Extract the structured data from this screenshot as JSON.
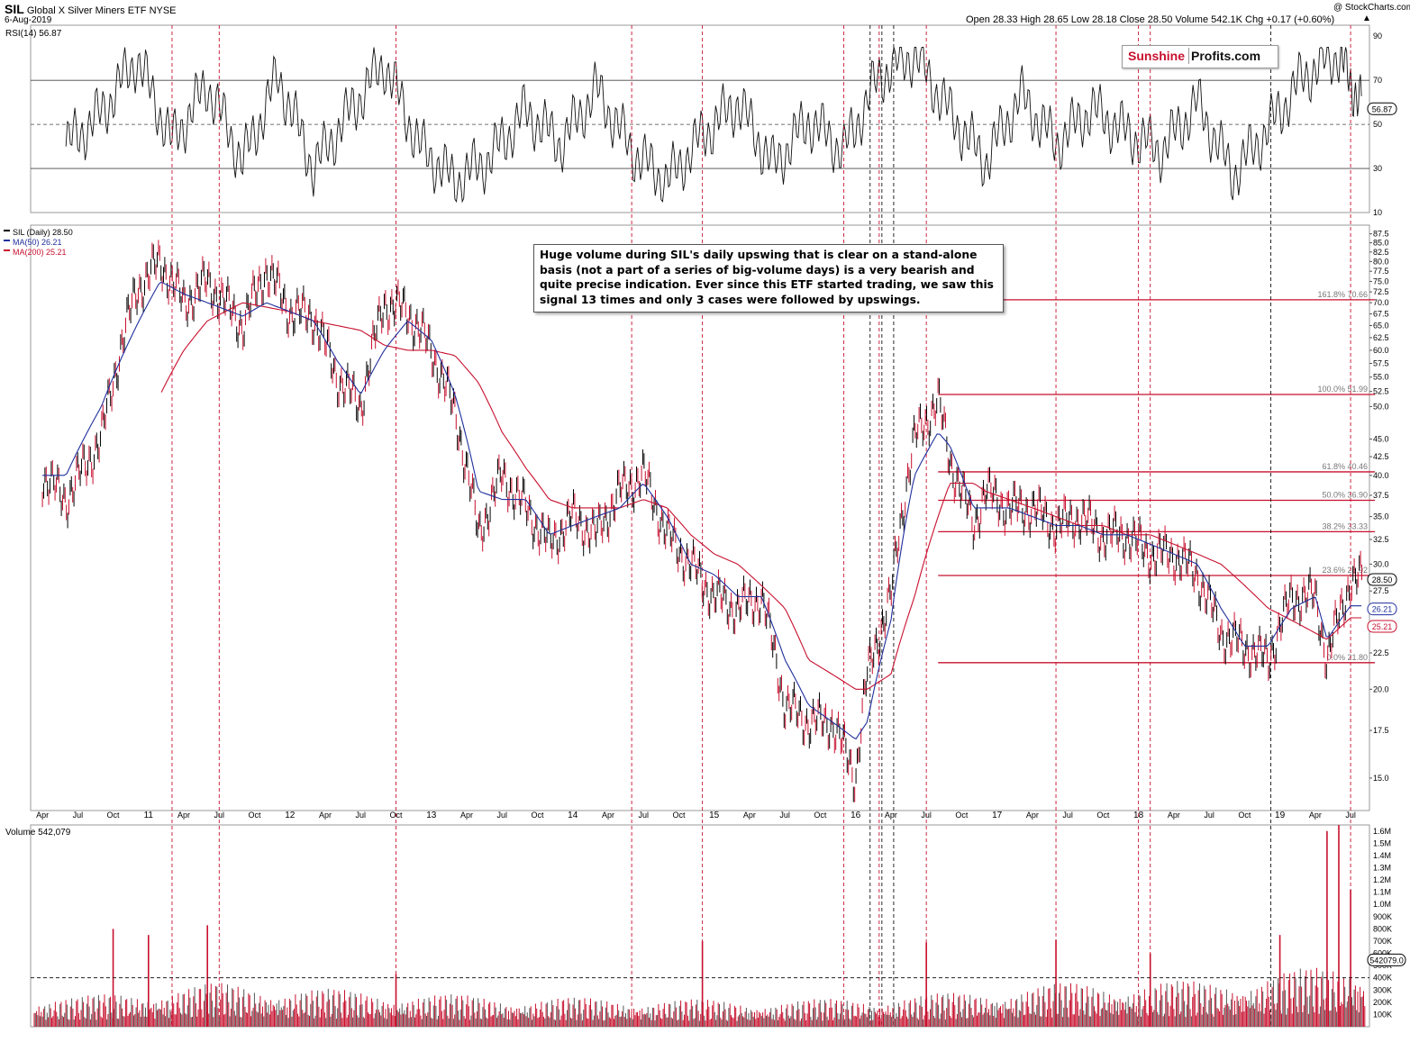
{
  "header": {
    "symbol": "SIL",
    "name": "Global X Silver Miners ETF",
    "exchange": "NYSE",
    "date": "6-Aug-2019",
    "copyright": "@ StockCharts.com",
    "ohlc": "Open 28.33  High 28.65  Low 28.18  Close 28.50  Volume 542.1K  Chg +0.17 (+0.60%)",
    "up_arrow": "▲"
  },
  "logo": {
    "part1": "Sunshine",
    "part2": "Profits.com"
  },
  "annotation": "Huge volume during SIL's daily upswing that is clear on a stand-alone basis (not a part of a series of big-volume days) is a very bearish and quite precise indication. Ever since this ETF started trading, we saw this signal 13 times and only 3 cases were followed by upswings.",
  "colors": {
    "price_up": "#000000",
    "price_down": "#c8102e",
    "ma50": "#1f2f9c",
    "ma200": "#c8102e",
    "fib_line": "#c8102e",
    "signal_line": "#c8102e",
    "volume_bar": "#c8102e",
    "rsi_fill": "#4f7a4f"
  },
  "chart_data": [
    {
      "type": "line",
      "title": "RSI(14) 56.87",
      "x_range": [
        "2010-04",
        "2019-08"
      ],
      "ylim": [
        10,
        95
      ],
      "y_ticks": [
        "90",
        "70",
        "50",
        "30",
        "10"
      ],
      "guides": [
        70,
        50,
        30
      ],
      "last_value": "56.87",
      "series": [
        {
          "name": "RSI(14)",
          "x": [
            "2010-06",
            "2010-09",
            "2010-12",
            "2011-03",
            "2011-06",
            "2011-09",
            "2011-12",
            "2012-03",
            "2012-06",
            "2012-09",
            "2012-12",
            "2013-03",
            "2013-06",
            "2013-09",
            "2013-12",
            "2014-03",
            "2014-06",
            "2014-09",
            "2014-12",
            "2015-03",
            "2015-06",
            "2015-09",
            "2015-12",
            "2016-03",
            "2016-06",
            "2016-09",
            "2016-12",
            "2017-03",
            "2017-06",
            "2017-09",
            "2017-12",
            "2018-03",
            "2018-06",
            "2018-09",
            "2018-12",
            "2019-03",
            "2019-06",
            "2019-08"
          ],
          "values": [
            40,
            55,
            80,
            42,
            68,
            33,
            72,
            30,
            55,
            78,
            40,
            24,
            35,
            56,
            41,
            66,
            38,
            24,
            45,
            60,
            31,
            52,
            38,
            72,
            82,
            55,
            33,
            63,
            41,
            57,
            46,
            38,
            60,
            27,
            48,
            72,
            82,
            57
          ]
        }
      ]
    },
    {
      "type": "line",
      "title": "SIL (Daily) 28.50",
      "x_ticks": [
        "Apr",
        "Jul",
        "Oct",
        "11",
        "Apr",
        "Jul",
        "Oct",
        "12",
        "Apr",
        "Jul",
        "Oct",
        "13",
        "Apr",
        "Jul",
        "Oct",
        "14",
        "Apr",
        "Jul",
        "Oct",
        "15",
        "Apr",
        "Jul",
        "Oct",
        "16",
        "Apr",
        "Jul",
        "Oct",
        "17",
        "Apr",
        "Jul",
        "Oct",
        "18",
        "Apr",
        "Jul",
        "Oct",
        "19",
        "Apr",
        "Jul"
      ],
      "y_ticks": [
        "87.5",
        "85.0",
        "82.5",
        "80.0",
        "77.5",
        "75.0",
        "72.5",
        "70.0",
        "67.5",
        "65.0",
        "62.5",
        "60.0",
        "57.5",
        "55.0",
        "52.5",
        "50.0",
        "45.0",
        "42.5",
        "40.0",
        "37.5",
        "35.0",
        "32.5",
        "30.0",
        "27.5",
        "22.5",
        "20.0",
        "17.5",
        "15.0"
      ],
      "ylim": [
        13.5,
        90
      ],
      "y_scale": "log",
      "x": [
        "2010-04",
        "2010-06",
        "2010-09",
        "2010-12",
        "2011-02",
        "2011-04",
        "2011-06",
        "2011-09",
        "2011-11",
        "2012-01",
        "2012-03",
        "2012-05",
        "2012-07",
        "2012-09",
        "2012-11",
        "2013-01",
        "2013-03",
        "2013-05",
        "2013-07",
        "2013-09",
        "2013-11",
        "2014-01",
        "2014-03",
        "2014-05",
        "2014-07",
        "2014-09",
        "2014-11",
        "2015-01",
        "2015-03",
        "2015-05",
        "2015-07",
        "2015-09",
        "2015-11",
        "2016-01",
        "2016-02",
        "2016-04",
        "2016-06",
        "2016-08",
        "2016-09",
        "2016-11",
        "2016-12",
        "2017-02",
        "2017-04",
        "2017-06",
        "2017-08",
        "2017-10",
        "2017-12",
        "2018-02",
        "2018-04",
        "2018-06",
        "2018-08",
        "2018-10",
        "2018-12",
        "2019-02",
        "2019-04",
        "2019-05",
        "2019-07",
        "2019-08"
      ],
      "series": [
        {
          "name": "SIL (Daily)",
          "values": [
            40,
            37,
            45,
            73,
            80,
            70,
            75,
            65,
            78,
            68,
            67,
            55,
            50,
            70,
            68,
            60,
            49,
            33,
            40,
            36,
            32,
            35,
            33,
            38,
            40,
            33,
            30,
            27,
            26,
            27,
            19,
            18,
            18,
            15,
            21,
            27,
            45,
            51,
            42,
            34,
            38,
            36,
            36,
            34,
            35,
            33,
            33,
            31,
            31,
            29,
            24,
            23,
            22,
            27,
            27,
            22,
            28.5,
            28.5
          ]
        },
        {
          "name": "MA(50)",
          "values": [
            40,
            40,
            50,
            65,
            75,
            72,
            70,
            67,
            70,
            68,
            66,
            58,
            52,
            60,
            66,
            62,
            52,
            38,
            37,
            37,
            33,
            34,
            35,
            36,
            39,
            35,
            30,
            29,
            27,
            27,
            22,
            19,
            18,
            17,
            18,
            25,
            40,
            46,
            44,
            36,
            36,
            36,
            35,
            34,
            34,
            33,
            33,
            32,
            31,
            30,
            26,
            23,
            23,
            26,
            27,
            23.5,
            26.21,
            26.21
          ]
        },
        {
          "name": "MA(200)",
          "values": [
            null,
            null,
            null,
            null,
            52,
            60,
            66,
            70,
            69,
            68,
            66,
            65,
            64,
            61,
            60,
            60,
            59,
            54,
            46,
            41,
            37,
            36,
            36,
            36,
            37,
            36,
            33,
            31,
            30,
            28,
            26,
            22,
            21,
            20,
            20,
            21,
            27,
            35,
            39,
            39,
            38,
            37,
            36,
            35,
            34,
            34,
            33,
            33,
            32,
            31,
            30,
            28,
            26,
            25,
            24,
            23.5,
            25.21,
            25.21
          ]
        }
      ],
      "last_labels": [
        "28.50",
        "26.21",
        "25.21"
      ],
      "legend": [
        "SIL (Daily) 28.50",
        "MA(50) 26.21",
        "MA(200) 25.21"
      ],
      "fibonacci": [
        {
          "label": "161.8% 70.66",
          "value": 70.66
        },
        {
          "label": "100.0% 51.99",
          "value": 51.99
        },
        {
          "label": "61.8% 40.46",
          "value": 40.46
        },
        {
          "label": "50.0% 36.90",
          "value": 36.9
        },
        {
          "label": "38.2% 33.33",
          "value": 33.33
        },
        {
          "label": "23.6% 28.92",
          "value": 28.92
        },
        {
          "label": "0.0% 21.80",
          "value": 21.8
        }
      ],
      "signals_red": [
        "2011-03",
        "2011-07",
        "2012-10",
        "2014-06",
        "2014-12",
        "2015-12",
        "2016-03",
        "2016-07",
        "2017-06",
        "2018-01",
        "2018-02",
        "2019-07"
      ],
      "signals_black": [
        "2016-02",
        "2016-03",
        "2016-04",
        "2018-12"
      ]
    },
    {
      "type": "bar",
      "title": "Volume 542,079",
      "y_ticks": [
        "1.6M",
        "1.5M",
        "1.4M",
        "1.3M",
        "1.2M",
        "1.1M",
        "1.0M",
        "900K",
        "800K",
        "700K",
        "600K",
        "500K",
        "400K",
        "300K",
        "200K",
        "100K"
      ],
      "ylim": [
        0,
        1650000
      ],
      "last_label": "542079.0",
      "baseline": 400000,
      "x": [
        "2010",
        "2011",
        "2012",
        "2013",
        "2014",
        "2015",
        "2016",
        "2017",
        "2018",
        "2019"
      ],
      "values": [
        150000,
        220000,
        180000,
        150000,
        140000,
        130000,
        160000,
        220000,
        230000,
        320000
      ],
      "peaks": [
        {
          "x": "2010-10",
          "v": 800000
        },
        {
          "x": "2011-01",
          "v": 750000
        },
        {
          "x": "2011-06",
          "v": 830000
        },
        {
          "x": "2012-10",
          "v": 430000
        },
        {
          "x": "2014-12",
          "v": 700000
        },
        {
          "x": "2016-07",
          "v": 690000
        },
        {
          "x": "2017-06",
          "v": 710000
        },
        {
          "x": "2018-02",
          "v": 600000
        },
        {
          "x": "2019-01",
          "v": 750000
        },
        {
          "x": "2019-05",
          "v": 1600000
        },
        {
          "x": "2019-06",
          "v": 1650000
        },
        {
          "x": "2019-07",
          "v": 1120000
        }
      ]
    }
  ]
}
